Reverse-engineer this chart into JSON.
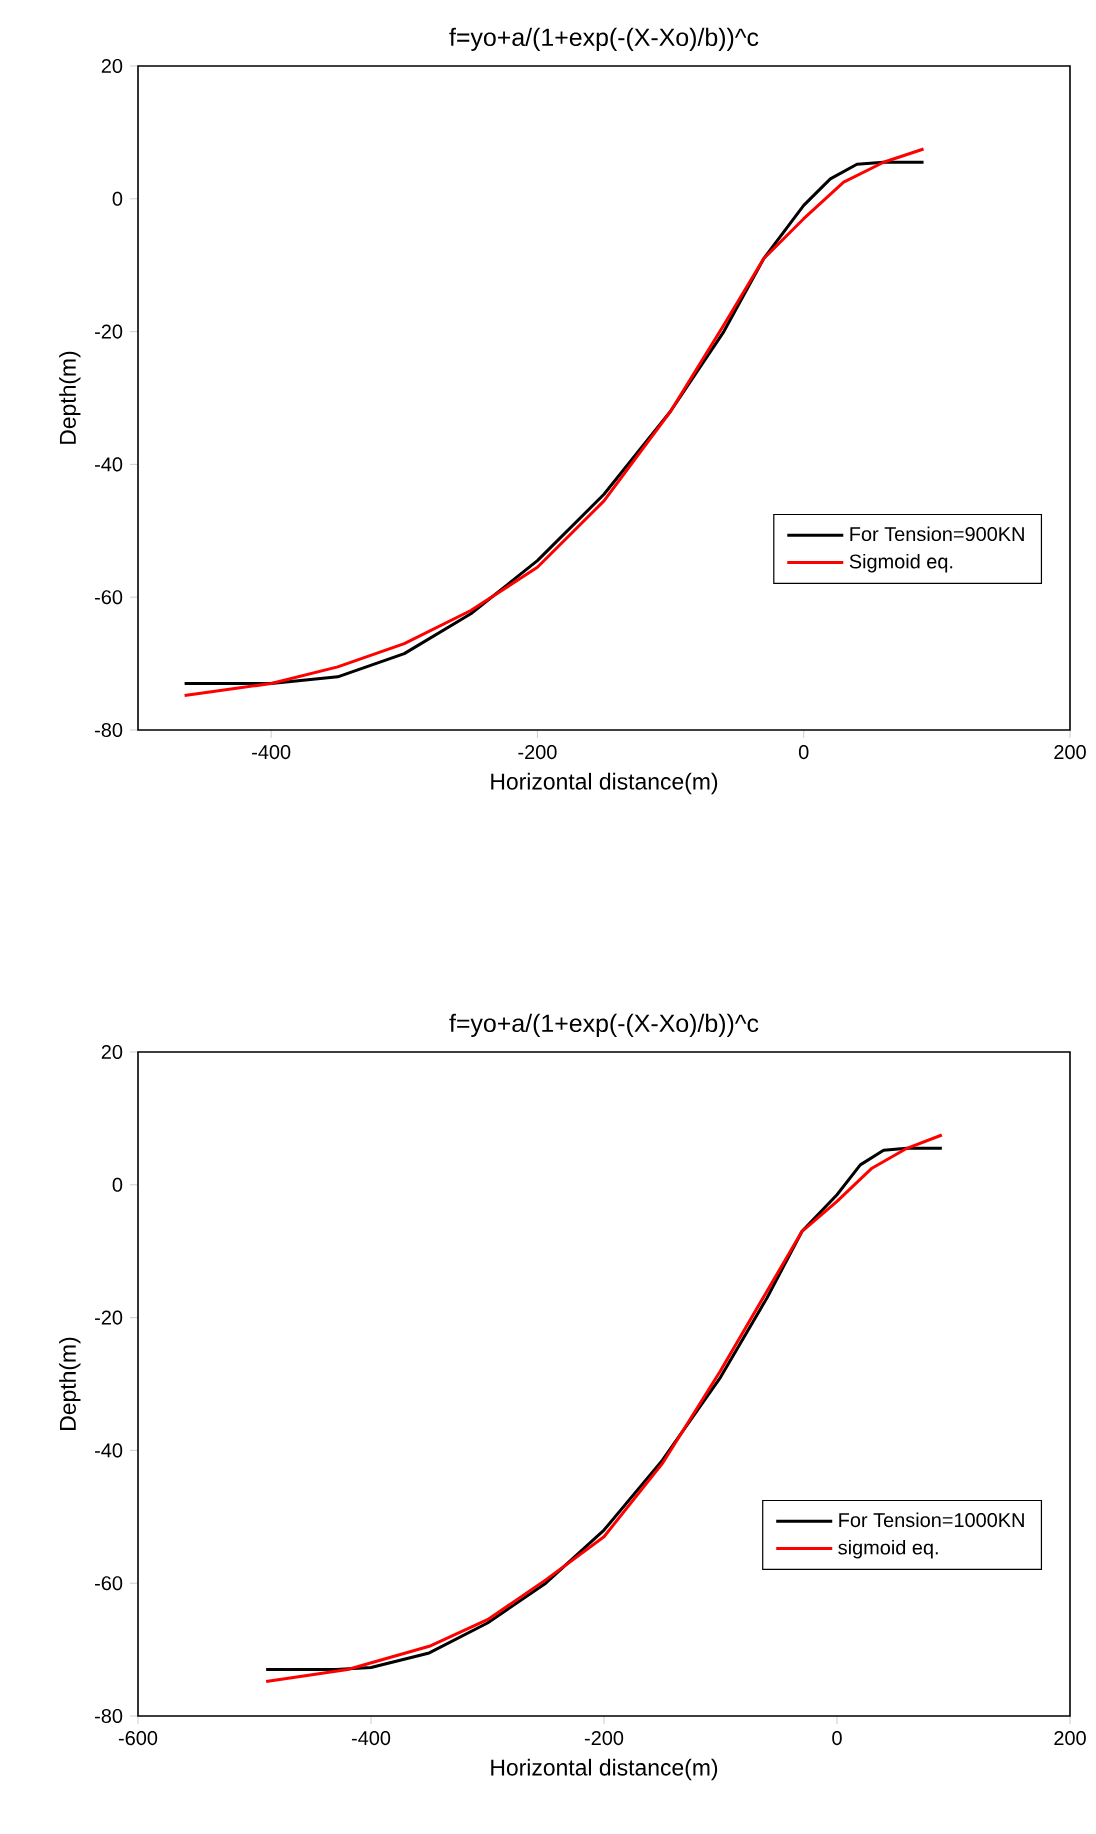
{
  "chart_data": [
    {
      "type": "line",
      "title": "f=yo+a/(1+exp(-(X-Xo)/b))^c",
      "xlabel": "Horizontal distance(m)",
      "ylabel": "Depth(m)",
      "xlim": [
        -500,
        200
      ],
      "xticks": [
        -400,
        -200,
        0,
        200
      ],
      "ylim": [
        -80,
        20
      ],
      "yticks": [
        -80,
        -60,
        -40,
        -20,
        0,
        20
      ],
      "grid": false,
      "legend": "bottom right",
      "series": [
        {
          "name": "For Tension=900KN",
          "color": "#000000",
          "x": [
            -465,
            -400,
            -350,
            -300,
            -250,
            -200,
            -150,
            -100,
            -60,
            -30,
            0,
            20,
            40,
            60,
            90
          ],
          "values": [
            -73,
            -73,
            -72,
            -68.5,
            -62.5,
            -54.5,
            -44.5,
            -32,
            -20,
            -9,
            -1,
            3,
            5.2,
            5.5,
            5.5
          ]
        },
        {
          "name": "Sigmoid eq.",
          "color": "#ff0000",
          "x": [
            -465,
            -400,
            -350,
            -300,
            -250,
            -200,
            -150,
            -100,
            -60,
            -30,
            0,
            30,
            60,
            90
          ],
          "values": [
            -74.8,
            -73,
            -70.5,
            -67,
            -62,
            -55.5,
            -45.5,
            -32,
            -19,
            -9,
            -3,
            2.5,
            5.5,
            7.5
          ]
        }
      ]
    },
    {
      "type": "line",
      "title": "f=yo+a/(1+exp(-(X-Xo)/b))^c",
      "xlabel": "Horizontal distance(m)",
      "ylabel": "Depth(m)",
      "xlim": [
        -600,
        200
      ],
      "xticks": [
        -600,
        -400,
        -200,
        0,
        200
      ],
      "ylim": [
        -80,
        20
      ],
      "yticks": [
        -80,
        -60,
        -40,
        -20,
        0,
        20
      ],
      "grid": false,
      "legend": "bottom right",
      "series": [
        {
          "name": "For Tension=1000KN",
          "color": "#000000",
          "x": [
            -490,
            -430,
            -400,
            -350,
            -300,
            -250,
            -200,
            -150,
            -100,
            -60,
            -30,
            0,
            20,
            40,
            60,
            90
          ],
          "values": [
            -73,
            -73,
            -72.7,
            -70.5,
            -66,
            -60,
            -52,
            -41.5,
            -29,
            -17,
            -7,
            -1.5,
            3,
            5.2,
            5.5,
            5.5
          ]
        },
        {
          "name": "sigmoid eq.",
          "color": "#ff0000",
          "x": [
            -490,
            -420,
            -350,
            -300,
            -250,
            -200,
            -150,
            -100,
            -60,
            -30,
            0,
            30,
            60,
            90
          ],
          "values": [
            -74.8,
            -73,
            -69.5,
            -65.5,
            -59.5,
            -53,
            -42,
            -28,
            -16,
            -7,
            -2.5,
            2.5,
            5.5,
            7.5
          ]
        }
      ]
    }
  ]
}
